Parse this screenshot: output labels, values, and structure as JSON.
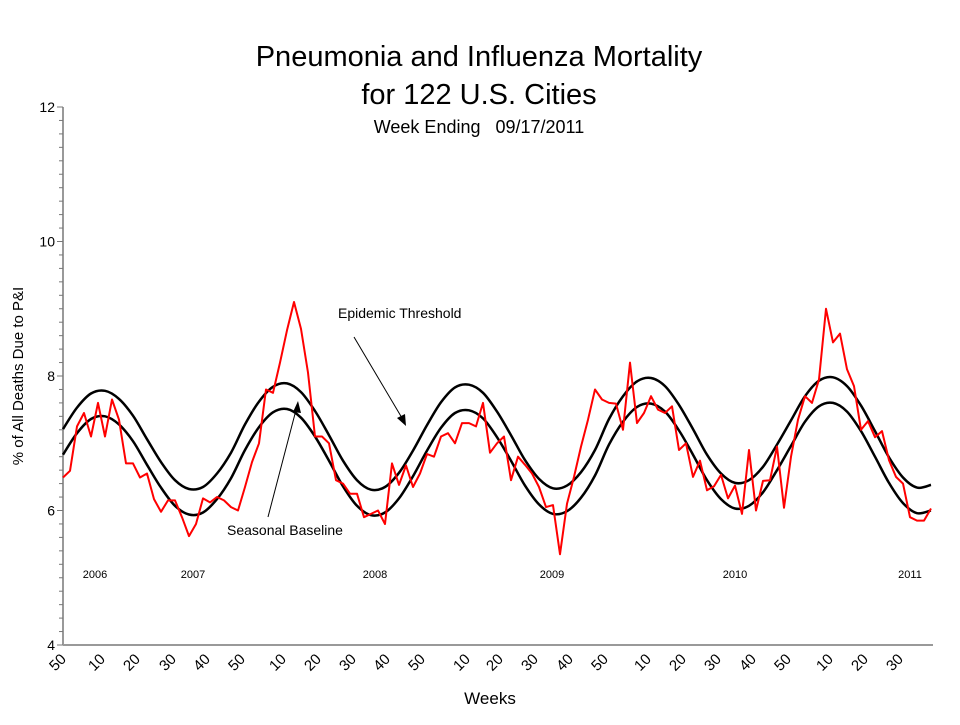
{
  "chart_data": {
    "type": "line",
    "title": "Pneumonia and Influenza Mortality",
    "title_line2": "for 122 U.S. Cities",
    "subtitle": "Week Ending   09/17/2011",
    "xlabel": "Weeks",
    "ylabel": "% of All Deaths Due to P&I",
    "ylim": [
      4,
      12
    ],
    "yticks": [
      4,
      6,
      8,
      10,
      12
    ],
    "ytick_labels": [
      "4",
      "6",
      "8",
      "10",
      "12"
    ],
    "xtick_labels": [
      "50",
      "10",
      "20",
      "30",
      "40",
      "50",
      "10",
      "20",
      "30",
      "40",
      "50",
      "10",
      "20",
      "30",
      "40",
      "50",
      "10",
      "20",
      "30",
      "40",
      "50",
      "10",
      "20",
      "30"
    ],
    "year_labels": [
      "2006",
      "2007",
      "2008",
      "2009",
      "2010",
      "2011"
    ],
    "grid": false,
    "legend": "none",
    "annotations": {
      "threshold": "Epidemic Threshold",
      "baseline": "Seasonal Baseline"
    },
    "series": [
      {
        "role": "observed",
        "color": "#ff0000",
        "values": [
          6.49,
          6.59,
          7.25,
          7.45,
          7.1,
          7.6,
          7.1,
          7.65,
          7.35,
          6.7,
          6.7,
          6.49,
          6.55,
          6.17,
          5.98,
          6.15,
          6.15,
          5.9,
          5.62,
          5.8,
          6.18,
          6.12,
          6.2,
          6.15,
          6.05,
          6.0,
          6.35,
          6.72,
          7.0,
          7.8,
          7.75,
          8.2,
          8.68,
          9.1,
          8.7,
          8.05,
          7.1,
          7.1,
          7.0,
          6.45,
          6.4,
          6.25,
          6.25,
          5.9,
          5.95,
          6.0,
          5.8,
          6.7,
          6.38,
          6.67,
          6.35,
          6.55,
          6.84,
          6.8,
          7.1,
          7.15,
          7.0,
          7.3,
          7.3,
          7.25,
          7.6,
          6.86,
          7.0,
          7.1,
          6.45,
          6.8,
          6.68,
          6.55,
          6.35,
          6.05,
          6.08,
          5.35,
          6.1,
          6.5,
          6.95,
          7.35,
          7.8,
          7.65,
          7.6,
          7.59,
          7.2,
          8.2,
          7.3,
          7.45,
          7.7,
          7.5,
          7.45,
          7.55,
          6.9,
          7.0,
          6.5,
          6.74,
          6.3,
          6.36,
          6.53,
          6.18,
          6.37,
          5.95,
          6.9,
          6.0,
          6.44,
          6.45,
          6.95,
          6.04,
          6.8,
          7.35,
          7.7,
          7.6,
          7.95,
          9.0,
          8.5,
          8.63,
          8.1,
          7.85,
          7.2,
          7.33,
          7.09,
          7.18,
          6.75,
          6.5,
          6.4,
          5.9,
          5.85,
          5.85,
          6.03
        ]
      },
      {
        "role": "epidemic-threshold",
        "color": "#000000",
        "values": [
          7.21,
          7.53,
          7.74,
          7.78,
          7.66,
          7.41,
          7.06,
          6.72,
          6.45,
          6.32,
          6.35,
          6.55,
          6.86,
          7.28,
          7.62,
          7.84,
          7.89,
          7.76,
          7.48,
          7.12,
          6.74,
          6.45,
          6.31,
          6.35,
          6.56,
          6.89,
          7.27,
          7.61,
          7.83,
          7.87,
          7.75,
          7.47,
          7.12,
          6.75,
          6.47,
          6.33,
          6.37,
          6.57,
          6.9,
          7.36,
          7.7,
          7.92,
          7.97,
          7.85,
          7.57,
          7.21,
          6.83,
          6.55,
          6.41,
          6.45,
          6.65,
          6.98,
          7.34,
          7.7,
          7.93,
          7.98,
          7.85,
          7.56,
          7.18,
          6.79,
          6.49,
          6.34,
          6.38
        ]
      },
      {
        "role": "seasonal-baseline",
        "color": "#000000",
        "values": [
          6.83,
          7.15,
          7.36,
          7.4,
          7.28,
          7.03,
          6.68,
          6.34,
          6.07,
          5.94,
          5.97,
          6.17,
          6.48,
          6.9,
          7.24,
          7.46,
          7.51,
          7.38,
          7.1,
          6.74,
          6.36,
          6.07,
          5.93,
          5.97,
          6.18,
          6.51,
          6.89,
          7.23,
          7.45,
          7.49,
          7.37,
          7.09,
          6.74,
          6.37,
          6.09,
          5.95,
          5.99,
          6.19,
          6.52,
          6.98,
          7.32,
          7.54,
          7.59,
          7.47,
          7.19,
          6.83,
          6.45,
          6.17,
          6.03,
          6.07,
          6.27,
          6.6,
          6.96,
          7.32,
          7.55,
          7.6,
          7.47,
          7.18,
          6.8,
          6.41,
          6.11,
          5.96,
          6.0
        ]
      }
    ]
  }
}
